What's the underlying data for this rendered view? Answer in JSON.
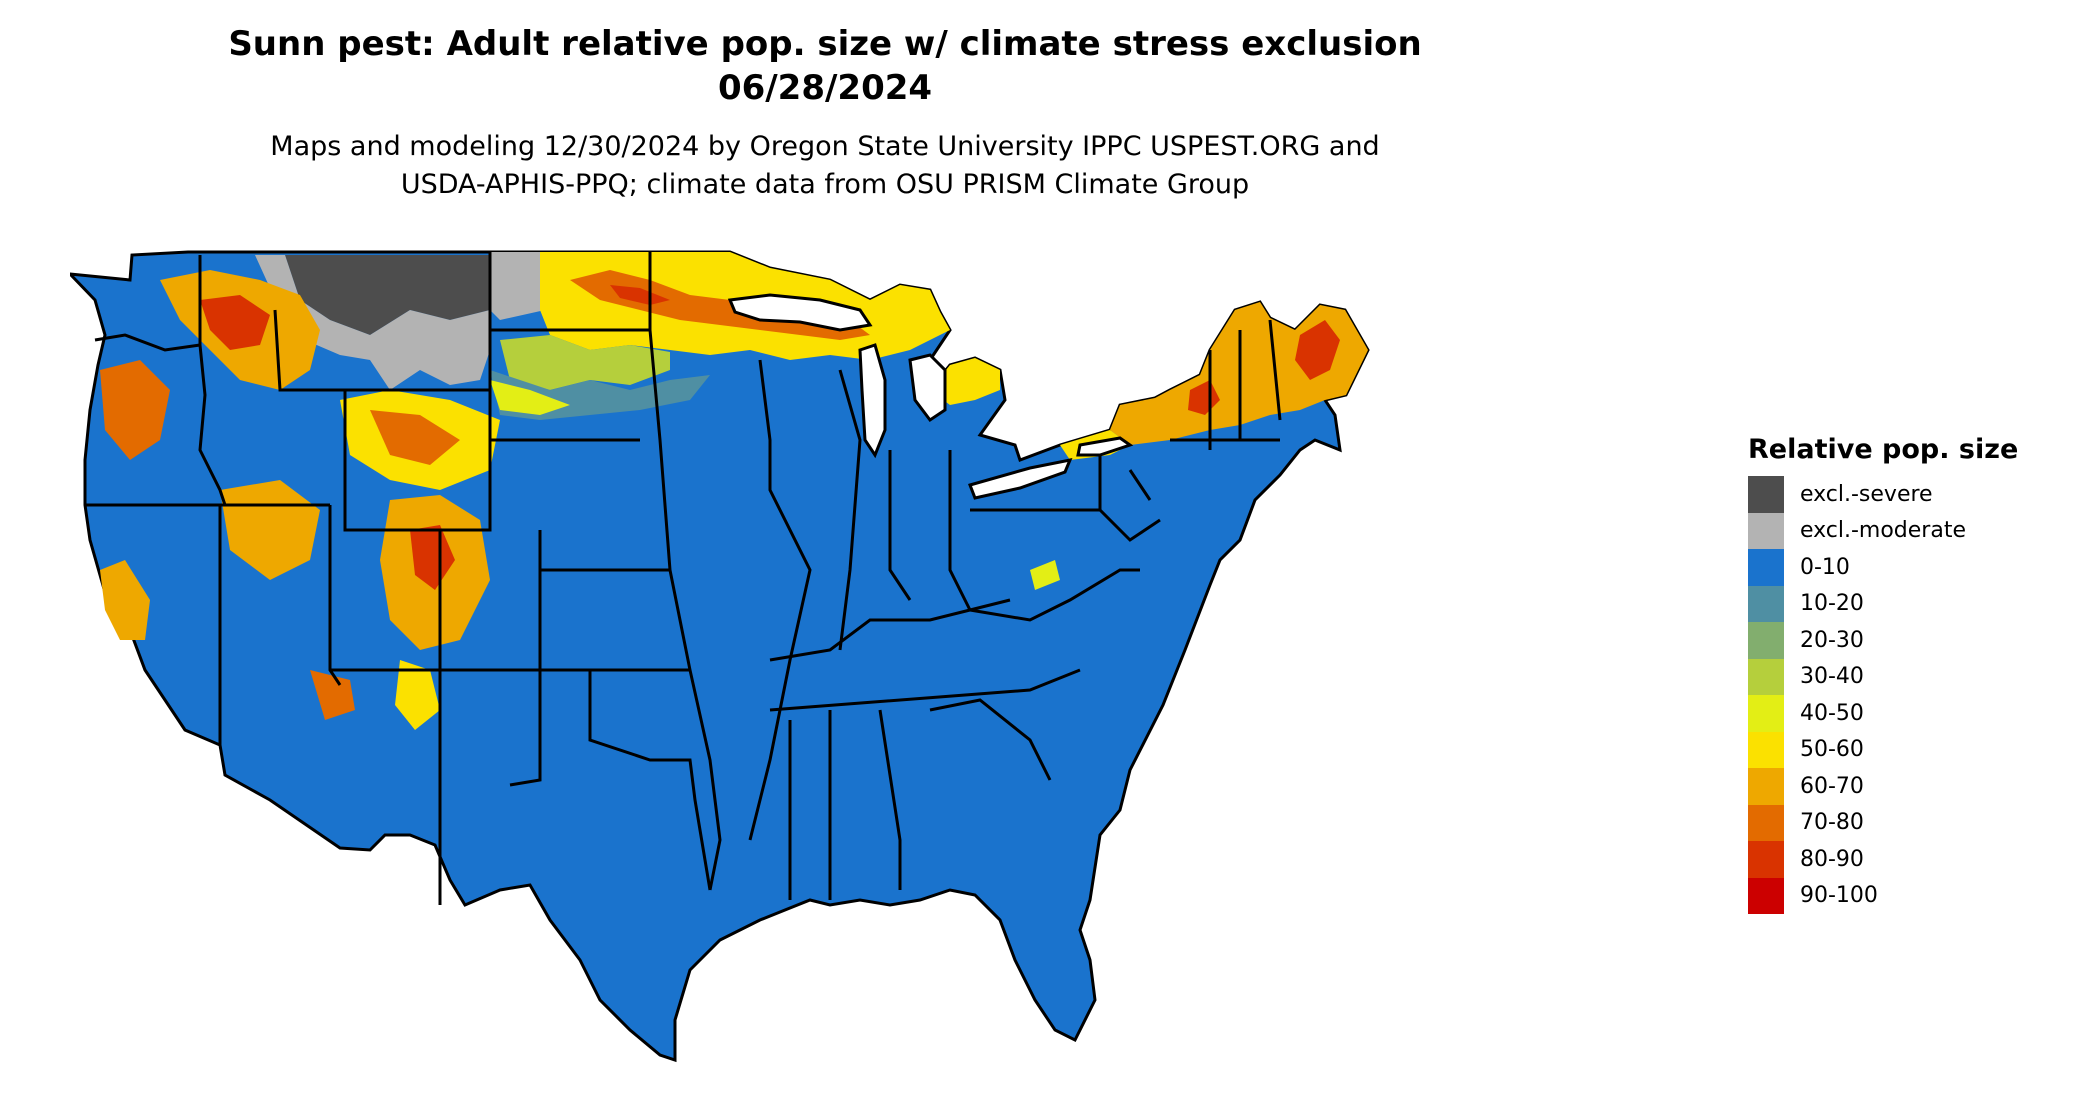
{
  "header": {
    "title_line1": "Sunn pest: Adult relative pop. size w/ climate stress exclusion",
    "title_line2": "06/28/2024",
    "subtitle_line1": "Maps and modeling 12/30/2024 by Oregon State University IPPC USPEST.ORG and",
    "subtitle_line2": "USDA-APHIS-PPQ; climate data from OSU PRISM Climate Group"
  },
  "legend": {
    "title": "Relative pop. size",
    "items": [
      {
        "label": "excl.-severe",
        "color": "#4d4d4d"
      },
      {
        "label": "excl.-moderate",
        "color": "#b3b3b3"
      },
      {
        "label": "0-10",
        "color": "#1a73cd"
      },
      {
        "label": "10-20",
        "color": "#4f8fa3"
      },
      {
        "label": "20-30",
        "color": "#82ae6e"
      },
      {
        "label": "30-40",
        "color": "#b5cf3c"
      },
      {
        "label": "40-50",
        "color": "#e3ee15"
      },
      {
        "label": "50-60",
        "color": "#fbe100"
      },
      {
        "label": "60-70",
        "color": "#eea800"
      },
      {
        "label": "70-80",
        "color": "#e36b00"
      },
      {
        "label": "80-90",
        "color": "#d93300"
      },
      {
        "label": "90-100",
        "color": "#cc0000"
      }
    ]
  },
  "map": {
    "region": "contiguous United States",
    "background_color": "#1a73cd",
    "boundary_color": "#000000"
  }
}
